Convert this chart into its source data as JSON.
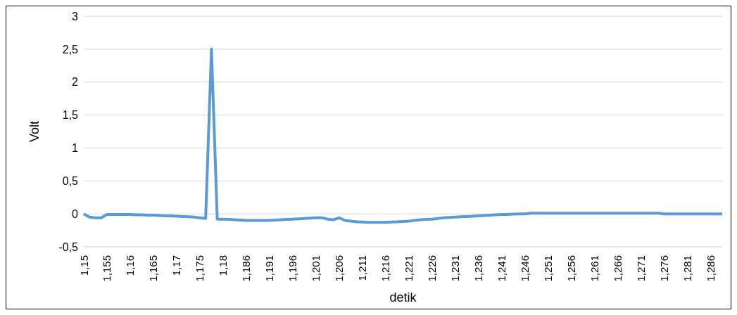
{
  "chart_data": {
    "type": "line",
    "xlabel": "detik",
    "ylabel": "Volt",
    "categories": [
      "1,15",
      null,
      null,
      null,
      "1,155",
      null,
      null,
      null,
      "1,16",
      null,
      null,
      null,
      "1,165",
      null,
      null,
      null,
      "1,17",
      null,
      null,
      null,
      "1,175",
      null,
      null,
      null,
      "1,18",
      null,
      null,
      null,
      "1,186",
      null,
      null,
      null,
      "1,191",
      null,
      null,
      null,
      "1,196",
      null,
      null,
      null,
      "1,201",
      null,
      null,
      null,
      "1,206",
      null,
      null,
      null,
      "1,211",
      null,
      null,
      null,
      "1,216",
      null,
      null,
      null,
      "1,221",
      null,
      null,
      null,
      "1,226",
      null,
      null,
      null,
      "1,231",
      null,
      null,
      null,
      "1,236",
      null,
      null,
      null,
      "1,241",
      null,
      null,
      null,
      "1,246",
      null,
      null,
      null,
      "1,251",
      null,
      null,
      null,
      "1,256",
      null,
      null,
      null,
      "1,261",
      null,
      null,
      null,
      "1,266",
      null,
      null,
      null,
      "1,271",
      null,
      null,
      null,
      "1,276",
      null,
      null,
      null,
      "1,281",
      null,
      null,
      null,
      "1,286",
      null,
      null
    ],
    "series": [
      {
        "color": "#5b9bd5",
        "values": [
          0,
          -0.05,
          -0.06,
          -0.06,
          -0.01,
          -0.01,
          -0.01,
          -0.01,
          -0.01,
          -0.015,
          -0.015,
          -0.02,
          -0.02,
          -0.025,
          -0.03,
          -0.03,
          -0.035,
          -0.04,
          -0.045,
          -0.05,
          -0.06,
          -0.07,
          2.5,
          -0.08,
          -0.08,
          -0.085,
          -0.09,
          -0.095,
          -0.1,
          -0.1,
          -0.1,
          -0.1,
          -0.1,
          -0.095,
          -0.09,
          -0.085,
          -0.08,
          -0.075,
          -0.07,
          -0.065,
          -0.06,
          -0.06,
          -0.08,
          -0.09,
          -0.06,
          -0.1,
          -0.11,
          -0.12,
          -0.125,
          -0.13,
          -0.13,
          -0.13,
          -0.13,
          -0.125,
          -0.12,
          -0.115,
          -0.11,
          -0.1,
          -0.09,
          -0.085,
          -0.08,
          -0.07,
          -0.06,
          -0.055,
          -0.05,
          -0.045,
          -0.04,
          -0.035,
          -0.03,
          -0.025,
          -0.02,
          -0.015,
          -0.01,
          -0.01,
          -0.005,
          0,
          0,
          0.01,
          0.01,
          0.01,
          0.01,
          0.01,
          0.01,
          0.01,
          0.01,
          0.01,
          0.01,
          0.01,
          0.01,
          0.01,
          0.01,
          0.01,
          0.01,
          0.01,
          0.01,
          0.01,
          0.01,
          0.01,
          0.01,
          0.01,
          0,
          0,
          0,
          0,
          0,
          0,
          0,
          0,
          0,
          0,
          0
        ]
      }
    ],
    "ylim": [
      -0.5,
      3
    ],
    "yticks": [
      {
        "value": -0.5,
        "label": "-0,5"
      },
      0,
      {
        "value": 0.5,
        "label": "0,5"
      },
      1,
      {
        "value": 1.5,
        "label": "1,5"
      },
      2,
      {
        "value": 2.5,
        "label": "2,5"
      },
      3
    ],
    "grid": "y",
    "legend": false,
    "marker": "none",
    "line_style": "solid"
  }
}
